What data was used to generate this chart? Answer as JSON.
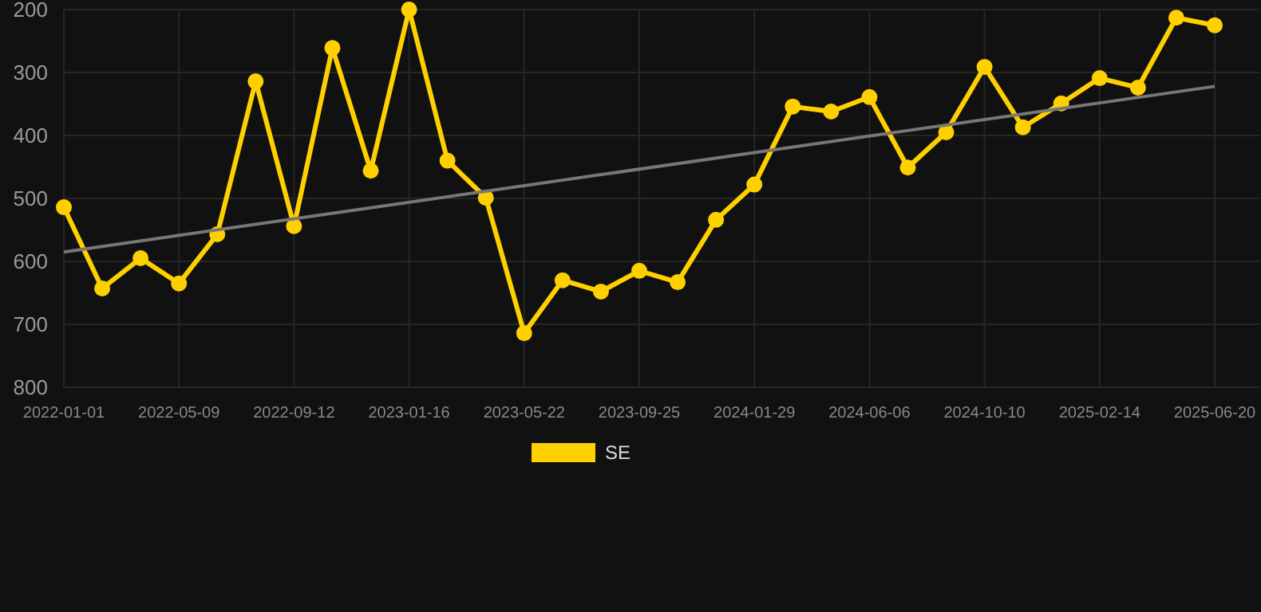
{
  "chart_data": {
    "type": "line",
    "categories": [
      "2022-01-01",
      null,
      null,
      "2022-05-09",
      null,
      null,
      "2022-09-12",
      null,
      null,
      "2023-01-16",
      null,
      null,
      "2023-05-22",
      null,
      null,
      "2023-09-25",
      null,
      null,
      "2024-01-29",
      null,
      null,
      "2024-06-06",
      null,
      null,
      "2024-10-10",
      null,
      null,
      "2025-02-14",
      null,
      null,
      "2025-06-20"
    ],
    "series": [
      {
        "name": "SE",
        "color": "#ffd000",
        "marker": "circle",
        "values": [
          514,
          643,
          595,
          635,
          557,
          314,
          544,
          261,
          456,
          200,
          440,
          499,
          714,
          630,
          648,
          615,
          633,
          534,
          478,
          354,
          362,
          339,
          451,
          395,
          291,
          387,
          349,
          309,
          324,
          213,
          225
        ]
      },
      {
        "type": "line",
        "color": "#777777",
        "marker": "none",
        "values": [
          585,
          null,
          null,
          null,
          null,
          null,
          null,
          null,
          null,
          null,
          null,
          null,
          null,
          null,
          null,
          null,
          null,
          null,
          null,
          null,
          null,
          null,
          null,
          null,
          null,
          null,
          null,
          null,
          null,
          null,
          322
        ]
      }
    ],
    "ylim": [
      800,
      200
    ],
    "yticks": [
      200,
      300,
      400,
      500,
      600,
      700,
      800
    ],
    "grid": true,
    "legend": "bottom"
  }
}
